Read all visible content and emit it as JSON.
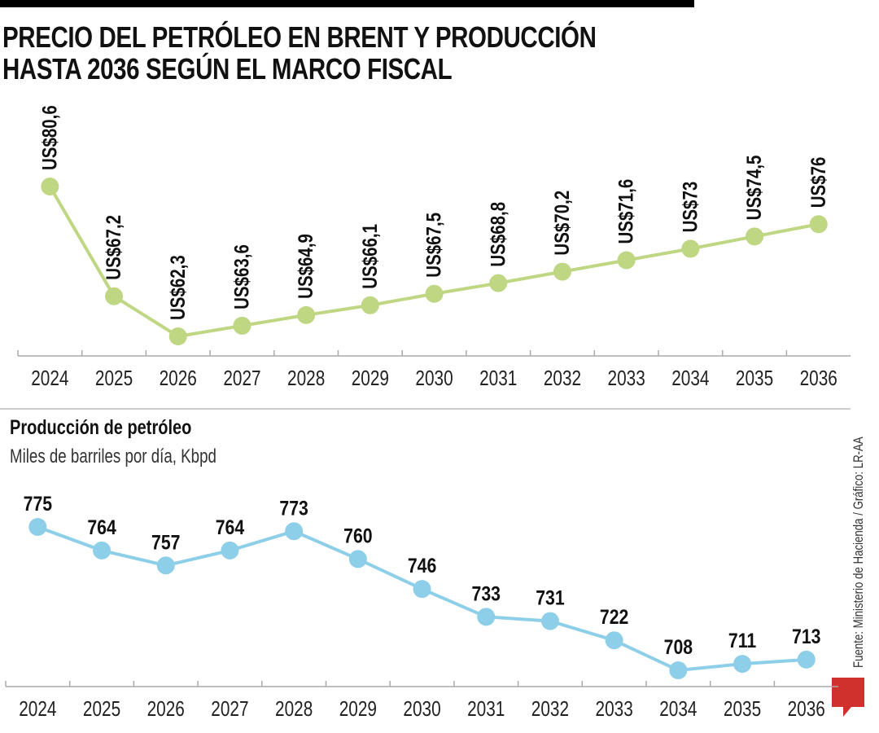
{
  "title": "PRECIO DEL PETRÓLEO EN BRENT Y PRODUCCIÓN HASTA 2036 SEGÚN EL MARCO FISCAL",
  "title_lines": [
    "PRECIO DEL PETRÓLEO EN BRENT Y PRODUCCIÓN",
    "HASTA 2036 SEGÚN EL MARCO FISCAL"
  ],
  "source": "Fuente: Ministerio de Hacienda / Gráfico: LR-AA",
  "logo": "LR",
  "chart_data": [
    {
      "type": "line",
      "title": "",
      "xlabel": "",
      "ylabel": "",
      "categories": [
        "2024",
        "2025",
        "2026",
        "2027",
        "2028",
        "2029",
        "2030",
        "2031",
        "2032",
        "2033",
        "2034",
        "2035",
        "2036"
      ],
      "values": [
        80.6,
        67.2,
        62.3,
        63.6,
        64.9,
        66.1,
        67.5,
        68.8,
        70.2,
        71.6,
        73,
        74.5,
        76
      ],
      "data_labels": [
        "US$80,6",
        "US$67,2",
        "US$62,3",
        "US$63,6",
        "US$64,9",
        "US$66,1",
        "US$67,5",
        "US$68,8",
        "US$70,2",
        "US$71,6",
        "US$73",
        "US$74,5",
        "US$76"
      ],
      "ylim": [
        60,
        82
      ],
      "grid": false,
      "color": "#bfd682"
    },
    {
      "type": "line",
      "title": "Producción de petróleo",
      "subtitle": "Miles de barriles por día, Kbpd",
      "xlabel": "",
      "ylabel": "",
      "categories": [
        "2024",
        "2025",
        "2026",
        "2027",
        "2028",
        "2029",
        "2030",
        "2031",
        "2032",
        "2033",
        "2034",
        "2035",
        "2036"
      ],
      "values": [
        775,
        764,
        757,
        764,
        773,
        760,
        746,
        733,
        731,
        722,
        708,
        711,
        713
      ],
      "data_labels": [
        "775",
        "764",
        "757",
        "764",
        "773",
        "760",
        "746",
        "733",
        "731",
        "722",
        "708",
        "711",
        "713"
      ],
      "ylim": [
        700,
        778
      ],
      "grid": false,
      "color": "#8dcfe8"
    }
  ]
}
